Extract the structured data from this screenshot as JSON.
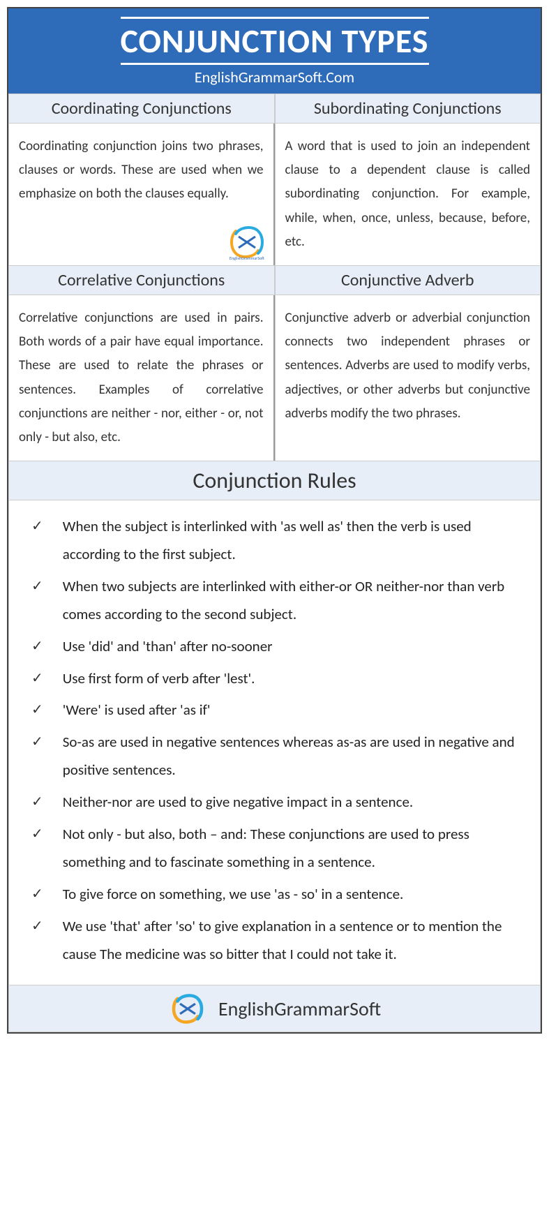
{
  "header": {
    "title": "CONJUNCTION TYPES",
    "subtitle": "EnglishGrammarSoft.Com"
  },
  "sections": [
    {
      "heading": "Coordinating Conjunctions",
      "body": "Coordinating conjunction joins two phrases, clauses or words. These are used when we emphasize on both the clauses equally."
    },
    {
      "heading": "Subordinating Conjunctions",
      "body": "A word that is used to join an independent clause to a dependent clause is called subordinating conjunction. For example, while, when, once, unless, because, before, etc."
    },
    {
      "heading": "Correlative Conjunctions",
      "body": "Correlative conjunctions are used in pairs. Both words of a pair have equal importance. These are used to relate the phrases or sentences. Examples of correlative conjunctions are neither - nor, either - or, not only - but also, etc."
    },
    {
      "heading": "Conjunctive Adverb",
      "body": "Conjunctive adverb or adverbial conjunction connects two independent phrases or sentences. Adverbs are used to modify verbs, adjectives, or other adverbs but conjunctive adverbs modify the two phrases."
    }
  ],
  "rules": {
    "heading": "Conjunction Rules",
    "items": [
      "When the subject is interlinked with 'as well as' then the verb is used according to the first subject.",
      "When two subjects are interlinked with either-or OR neither-nor than verb comes according to the second subject.",
      "Use 'did' and 'than' after no-sooner",
      "Use first form of verb after 'lest'.",
      "'Were' is used after 'as if'",
      "So-as are used in negative sentences whereas as-as are used in negative and positive sentences.",
      "Neither-nor are used to give negative impact in a sentence.",
      "Not only - but also, both – and: These conjunctions are used to press something and to fascinate something in a sentence.",
      "To give force on something, we use 'as - so' in a sentence.",
      "We use 'that' after 'so' to give explanation in a sentence or to mention the cause The medicine was so bitter that I could not take it."
    ]
  },
  "footer": {
    "brand": "EnglishGrammarSoft"
  },
  "colors": {
    "header_bg": "#2e6bb8",
    "header_text": "#ffffff",
    "section_heading_bg": "#e8eef7",
    "border": "#cccccc",
    "text": "#333333",
    "logo_orange": "#f5a623",
    "logo_blue": "#29abe2"
  }
}
